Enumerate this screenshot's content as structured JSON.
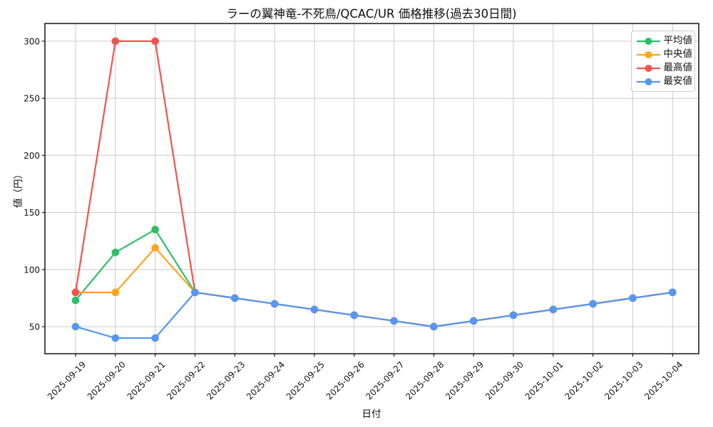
{
  "chart_data": {
    "type": "line",
    "title": "ラーの翼神竜-不死鳥/QCAC/UR 価格推移(過去30日間)",
    "xlabel": "日付",
    "ylabel": "値（円）",
    "x": [
      "2025-09-19",
      "2025-09-20",
      "2025-09-21",
      "2025-09-22",
      "2025-09-23",
      "2025-09-24",
      "2025-09-25",
      "2025-09-26",
      "2025-09-27",
      "2025-09-28",
      "2025-09-29",
      "2025-09-30",
      "2025-10-01",
      "2025-10-02",
      "2025-10-03",
      "2025-10-04"
    ],
    "yticks": [
      50,
      100,
      150,
      200,
      250,
      300
    ],
    "ylim": [
      26.3,
      315.5
    ],
    "grid": true,
    "legend_position": "upper right",
    "series": [
      {
        "id": "average",
        "name": "平均値",
        "color": "#2fbe68",
        "values": [
          73,
          115,
          135,
          80,
          75,
          70,
          65,
          60,
          55,
          50,
          55,
          60,
          65,
          70,
          75,
          80
        ]
      },
      {
        "id": "median",
        "name": "中央値",
        "color": "#ffa51e",
        "values": [
          80,
          80,
          119,
          80,
          75,
          70,
          65,
          60,
          55,
          50,
          55,
          60,
          65,
          70,
          75,
          80
        ]
      },
      {
        "id": "max",
        "name": "最高値",
        "color": "#f3534e",
        "values": [
          80,
          300,
          300,
          80,
          75,
          70,
          65,
          60,
          55,
          50,
          55,
          60,
          65,
          70,
          75,
          80
        ]
      },
      {
        "id": "min",
        "name": "最安値",
        "color": "#5597f2",
        "values": [
          50,
          40,
          40,
          80,
          75,
          70,
          65,
          60,
          55,
          50,
          55,
          60,
          65,
          70,
          75,
          80
        ]
      }
    ]
  }
}
